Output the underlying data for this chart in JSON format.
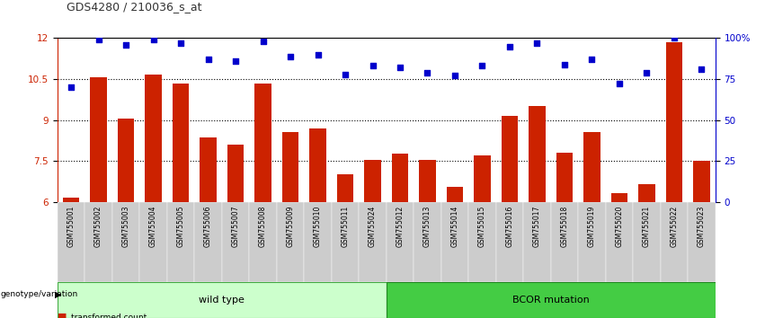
{
  "title": "GDS4280 / 210036_s_at",
  "samples": [
    "GSM755001",
    "GSM755002",
    "GSM755003",
    "GSM755004",
    "GSM755005",
    "GSM755006",
    "GSM755007",
    "GSM755008",
    "GSM755009",
    "GSM755010",
    "GSM755011",
    "GSM755024",
    "GSM755012",
    "GSM755013",
    "GSM755014",
    "GSM755015",
    "GSM755016",
    "GSM755017",
    "GSM755018",
    "GSM755019",
    "GSM755020",
    "GSM755021",
    "GSM755022",
    "GSM755023"
  ],
  "bar_values": [
    6.15,
    10.55,
    9.05,
    10.65,
    10.35,
    8.35,
    8.1,
    10.35,
    8.55,
    8.7,
    7.0,
    7.55,
    7.75,
    7.55,
    6.55,
    7.7,
    9.15,
    9.5,
    7.8,
    8.55,
    6.3,
    6.65,
    11.85,
    7.5
  ],
  "dot_values": [
    70,
    99,
    96,
    99,
    97,
    87,
    86,
    98,
    89,
    90,
    78,
    83,
    82,
    79,
    77,
    83,
    95,
    97,
    84,
    87,
    72,
    79,
    100,
    81
  ],
  "wild_type_count": 12,
  "ylim_left": [
    6,
    12
  ],
  "ylim_right": [
    0,
    100
  ],
  "yticks_left": [
    6,
    7.5,
    9,
    10.5,
    12
  ],
  "ytick_labels_left": [
    "6",
    "7.5",
    "9",
    "10.5",
    "12"
  ],
  "yticks_right": [
    0,
    25,
    50,
    75,
    100
  ],
  "ytick_labels_right": [
    "0",
    "25",
    "50",
    "75",
    "100%"
  ],
  "bar_color": "#CC2200",
  "dot_color": "#0000CC",
  "wt_bg_color": "#CCFFCC",
  "bcor_bg_color": "#44CC44",
  "tick_label_bg": "#CCCCCC",
  "dotted_line_values": [
    7.5,
    9,
    10.5
  ],
  "title_color": "#333333",
  "left_axis_color": "#CC2200",
  "right_axis_color": "#0000CC"
}
